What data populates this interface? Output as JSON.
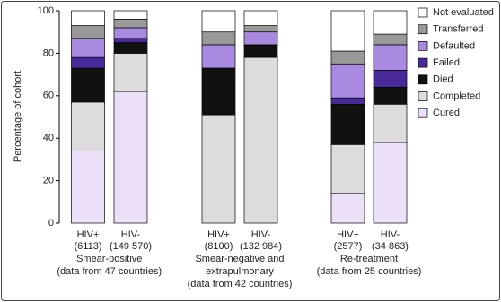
{
  "chart_data": {
    "type": "stacked_bar",
    "ylabel": "Percentage of cohort",
    "categories": [
      "HIV+",
      "HIV-",
      "HIV+",
      "HIV-",
      "HIV+",
      "HIV-"
    ],
    "category_counts": [
      "(6113)",
      "(149 570)",
      "(8100)",
      "(132 984)",
      "(2577)",
      "(34 863)"
    ],
    "groups": [
      {
        "lines": [
          "Smear-positive",
          "(data from 47 countries)"
        ]
      },
      {
        "lines": [
          "Smear-negative and",
          "extrapulmonary",
          "(data from 42 countries)"
        ]
      },
      {
        "lines": [
          "Re-treatment",
          "(data from 25 countries)"
        ]
      }
    ],
    "series": [
      {
        "name": "Cured",
        "color": "#ebe0f8",
        "values": [
          34,
          62,
          0,
          0,
          14,
          38
        ]
      },
      {
        "name": "Completed",
        "color": "#dcdcdc",
        "values": [
          23,
          18,
          51,
          78,
          23,
          18
        ]
      },
      {
        "name": "Died",
        "color": "#111111",
        "values": [
          16,
          5,
          22,
          6,
          19,
          8
        ]
      },
      {
        "name": "Failed",
        "color": "#4a2a9a",
        "values": [
          5,
          2,
          0,
          0,
          3,
          8
        ]
      },
      {
        "name": "Defaulted",
        "color": "#a98ae0",
        "values": [
          9,
          5,
          11,
          6,
          16,
          12
        ]
      },
      {
        "name": "Transferred",
        "color": "#999999",
        "values": [
          6,
          4,
          6,
          3,
          6,
          5
        ]
      },
      {
        "name": "Not evaluated",
        "color": "#ffffff",
        "values": [
          7,
          4,
          10,
          7,
          19,
          11
        ]
      }
    ],
    "ylim": [
      0,
      100
    ],
    "yticks": [
      0,
      20,
      40,
      60,
      80,
      100
    ]
  }
}
